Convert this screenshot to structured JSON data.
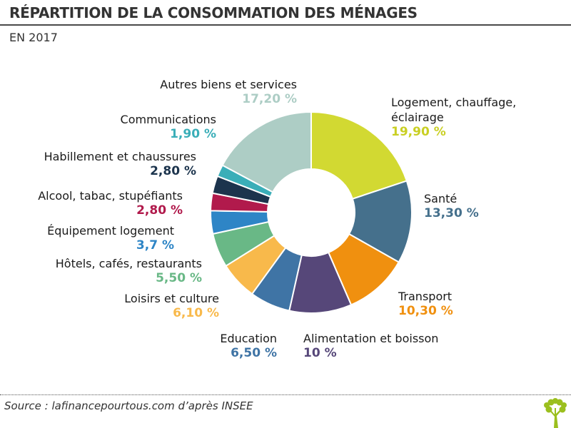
{
  "title": "RÉPARTITION DE LA CONSOMMATION DES MÉNAGES",
  "subtitle": "EN 2017",
  "source": "Source : lafinancepourtous.com d’après INSEE",
  "logo_icon": "tree-logo-icon",
  "chart_data": {
    "type": "pie",
    "variant": "donut",
    "title": "RÉPARTITION DE LA CONSOMMATION DES MÉNAGES",
    "subtitle": "EN 2017",
    "unit": "%",
    "start": "12 o'clock",
    "direction": "clockwise",
    "slices": [
      {
        "label": "Logement, chauffage, éclairage",
        "label_lines": [
          "Logement, chauffage,",
          "éclairage"
        ],
        "value": 19.9,
        "display": "19,90 %",
        "color": "#d2d932"
      },
      {
        "label": "Santé",
        "label_lines": [
          "Santé"
        ],
        "value": 13.3,
        "display": "13,30 %",
        "color": "#45708c"
      },
      {
        "label": "Transport",
        "label_lines": [
          "Transport"
        ],
        "value": 10.3,
        "display": "10,30 %",
        "color": "#f0900f"
      },
      {
        "label": "Alimentation et boisson",
        "label_lines": [
          "Alimentation et boisson"
        ],
        "value": 10,
        "display": "10 %",
        "color": "#564779"
      },
      {
        "label": "Education",
        "label_lines": [
          "Education"
        ],
        "value": 6.5,
        "display": "6,50 %",
        "color": "#3f74a5"
      },
      {
        "label": "Loisirs et culture",
        "label_lines": [
          "Loisirs et culture"
        ],
        "value": 6.1,
        "display": "6,10 %",
        "color": "#f8b94b"
      },
      {
        "label": "Hôtels, cafés, restaurants",
        "label_lines": [
          "Hôtels, cafés, restaurants"
        ],
        "value": 5.5,
        "display": "5,50 %",
        "color": "#69b886"
      },
      {
        "label": "Équipement logement",
        "label_lines": [
          "Équipement logement"
        ],
        "value": 3.7,
        "display": "3,7 %",
        "color": "#2e85c6"
      },
      {
        "label": "Alcool, tabac, stupéfiants",
        "label_lines": [
          "Alcool, tabac, stupéfiants"
        ],
        "value": 2.8,
        "display": "2,80 %",
        "color": "#b11a4c"
      },
      {
        "label": "Habillement et chaussures",
        "label_lines": [
          "Habillement et chaussures"
        ],
        "value": 2.8,
        "display": "2,80 %",
        "color": "#1c344d"
      },
      {
        "label": "Communications",
        "label_lines": [
          "Communications"
        ],
        "value": 1.9,
        "display": "1,90 %",
        "color": "#3aaeb8"
      },
      {
        "label": "Autres biens et services",
        "label_lines": [
          "Autres biens et services"
        ],
        "value": 17.2,
        "display": "17,20 %",
        "color": "#adcdc5"
      }
    ]
  }
}
